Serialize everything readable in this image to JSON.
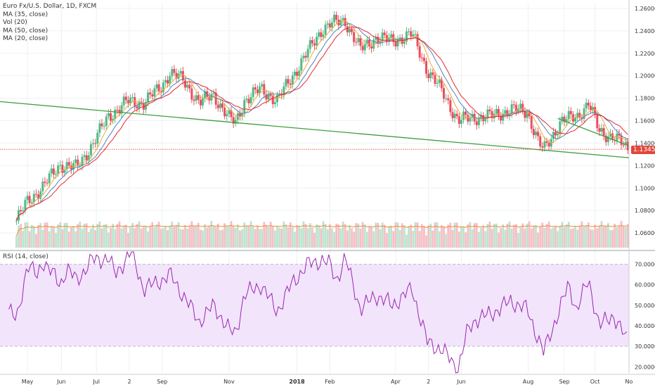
{
  "chart_data": {
    "type": "line",
    "title": "Euro Fx/U.S. Dollar, 1D, FXCM",
    "legend": [
      "MA (35, close)",
      "Vol (20)",
      "MA (50, close)",
      "MA (20, close)"
    ],
    "x_ticks": [
      "May",
      "Jun",
      "Jul",
      "2",
      "Sep",
      "Nov",
      "2018",
      "Feb",
      "Apr",
      "2",
      "Jun",
      "Aug",
      "Sep",
      "Oct",
      "No"
    ],
    "price_axis": {
      "ticks": [
        "1.26000",
        "1.24000",
        "1.22000",
        "1.20000",
        "1.18000",
        "1.16000",
        "1.14000",
        "1.12000",
        "1.10000",
        "1.08000",
        "1.06000"
      ],
      "range": [
        1.045,
        1.265
      ]
    },
    "last_price": "1.13450",
    "price_series": [
      [
        "2017-04-21",
        1.071
      ],
      [
        "2017-05-01",
        1.088
      ],
      [
        "2017-05-15",
        1.101
      ],
      [
        "2017-05-31",
        1.121
      ],
      [
        "2017-06-15",
        1.118
      ],
      [
        "2017-06-30",
        1.14
      ],
      [
        "2017-07-14",
        1.164
      ],
      [
        "2017-07-31",
        1.177
      ],
      [
        "2017-08-15",
        1.176
      ],
      [
        "2017-08-31",
        1.19
      ],
      [
        "2017-09-08",
        1.203
      ],
      [
        "2017-09-20",
        1.196
      ],
      [
        "2017-10-05",
        1.176
      ],
      [
        "2017-10-18",
        1.183
      ],
      [
        "2017-11-01",
        1.162
      ],
      [
        "2017-11-07",
        1.158
      ],
      [
        "2017-11-15",
        1.178
      ],
      [
        "2017-11-30",
        1.188
      ],
      [
        "2017-12-15",
        1.178
      ],
      [
        "2017-12-29",
        1.2
      ],
      [
        "2018-01-15",
        1.226
      ],
      [
        "2018-01-25",
        1.242
      ],
      [
        "2018-02-01",
        1.246
      ],
      [
        "2018-02-15",
        1.249
      ],
      [
        "2018-03-01",
        1.223
      ],
      [
        "2018-03-15",
        1.234
      ],
      [
        "2018-03-30",
        1.231
      ],
      [
        "2018-04-17",
        1.237
      ],
      [
        "2018-05-01",
        1.205
      ],
      [
        "2018-05-15",
        1.185
      ],
      [
        "2018-05-29",
        1.16
      ],
      [
        "2018-06-14",
        1.163
      ],
      [
        "2018-06-29",
        1.164
      ],
      [
        "2018-07-16",
        1.17
      ],
      [
        "2018-07-31",
        1.168
      ],
      [
        "2018-08-10",
        1.142
      ],
      [
        "2018-08-15",
        1.133
      ],
      [
        "2018-08-31",
        1.16
      ],
      [
        "2018-09-14",
        1.163
      ],
      [
        "2018-09-25",
        1.176
      ],
      [
        "2018-10-05",
        1.15
      ],
      [
        "2018-10-18",
        1.146
      ],
      [
        "2018-10-31",
        1.134
      ]
    ],
    "rsi": {
      "label": "RSI (14, close)",
      "ticks": [
        "70.0000",
        "60.0000",
        "50.0000",
        "40.0000",
        "30.0000",
        "20.0000"
      ],
      "range": [
        17,
        76
      ],
      "band": [
        30,
        70
      ],
      "series": [
        [
          "2017-04-14",
          48
        ],
        [
          "2017-04-21",
          42
        ],
        [
          "2017-05-01",
          70
        ],
        [
          "2017-05-10",
          64
        ],
        [
          "2017-05-15",
          72
        ],
        [
          "2017-05-31",
          60
        ],
        [
          "2017-06-06",
          68
        ],
        [
          "2017-06-15",
          62
        ],
        [
          "2017-06-29",
          72
        ],
        [
          "2017-07-14",
          73
        ],
        [
          "2017-07-20",
          65
        ],
        [
          "2017-08-04",
          76
        ],
        [
          "2017-08-15",
          58
        ],
        [
          "2017-08-31",
          62
        ],
        [
          "2017-09-08",
          65
        ],
        [
          "2017-09-20",
          55
        ],
        [
          "2017-10-05",
          42
        ],
        [
          "2017-10-18",
          50
        ],
        [
          "2017-11-01",
          38
        ],
        [
          "2017-11-07",
          36
        ],
        [
          "2017-11-15",
          55
        ],
        [
          "2017-11-30",
          60
        ],
        [
          "2017-12-15",
          47
        ],
        [
          "2017-12-29",
          61
        ],
        [
          "2018-01-12",
          70
        ],
        [
          "2018-01-25",
          72
        ],
        [
          "2018-02-01",
          70
        ],
        [
          "2018-02-07",
          62
        ],
        [
          "2018-02-15",
          73
        ],
        [
          "2018-03-01",
          48
        ],
        [
          "2018-03-15",
          55
        ],
        [
          "2018-03-30",
          50
        ],
        [
          "2018-04-17",
          58
        ],
        [
          "2018-05-01",
          32
        ],
        [
          "2018-05-15",
          28
        ],
        [
          "2018-05-29",
          19
        ],
        [
          "2018-06-07",
          38
        ],
        [
          "2018-06-14",
          43
        ],
        [
          "2018-06-29",
          46
        ],
        [
          "2018-07-16",
          52
        ],
        [
          "2018-07-31",
          48
        ],
        [
          "2018-08-10",
          34
        ],
        [
          "2018-08-15",
          27
        ],
        [
          "2018-08-31",
          50
        ],
        [
          "2018-09-07",
          60
        ],
        [
          "2018-09-14",
          48
        ],
        [
          "2018-09-25",
          62
        ],
        [
          "2018-10-05",
          40
        ],
        [
          "2018-10-18",
          45
        ],
        [
          "2018-10-31",
          32
        ]
      ]
    },
    "colors": {
      "up": "#53b987",
      "down": "#eb4d5c",
      "ma35": "#4f86b7",
      "ma50": "#e9282f",
      "ma20": "#f4a736",
      "vol_ma": "#f08c35",
      "trendline": "#3f9e3f",
      "rsi_line": "#9c27b0",
      "rsi_band": "#f1e4fb",
      "last_price_line": "#e0473a"
    }
  }
}
